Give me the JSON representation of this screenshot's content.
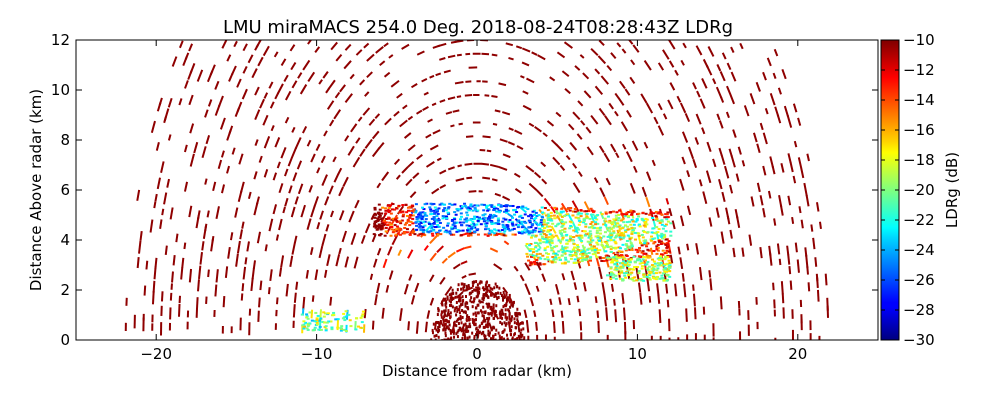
{
  "chart_data": {
    "type": "heatmap",
    "subtype": "RHI radar scan",
    "title": "LMU miraMACS 254.0 Deg. 2018-08-24T08:28:43Z  LDRg",
    "xlabel": "Distance from radar (km)",
    "ylabel": "Distance Above radar  (km)",
    "xlim": [
      -25,
      25
    ],
    "ylim": [
      0,
      12
    ],
    "xticks": [
      -20,
      -10,
      0,
      10,
      20
    ],
    "xtick_labels": [
      "−20",
      "−10",
      "0",
      "10",
      "20"
    ],
    "yticks": [
      0,
      2,
      4,
      6,
      8,
      10,
      12
    ],
    "ytick_labels": [
      "0",
      "2",
      "4",
      "6",
      "8",
      "10",
      "12"
    ],
    "colorbar": {
      "label": "LDRg (dB)",
      "colormap": "jet",
      "vmin": -30,
      "vmax": -10,
      "ticks": [
        -10,
        -12,
        -14,
        -16,
        -18,
        -20,
        -22,
        -24,
        -26,
        -28,
        -30
      ],
      "tick_labels": [
        "−10",
        "−12",
        "−14",
        "−16",
        "−18",
        "−20",
        "−22",
        "−24",
        "−26",
        "−28",
        "−30"
      ]
    },
    "features": [
      {
        "name": "near-radar clutter",
        "x_range": [
          -3,
          3
        ],
        "z_range": [
          0,
          2.5
        ],
        "ldr_db": -10.5
      },
      {
        "name": "cloud layer (low LDR core)",
        "x_range": [
          -4,
          4
        ],
        "z_range": [
          4.3,
          5.5
        ],
        "ldr_db": -25
      },
      {
        "name": "cloud layer (mid LDR)",
        "x_range": [
          3,
          12
        ],
        "z_range": [
          3,
          5.3
        ],
        "ldr_db": -19
      },
      {
        "name": "cloud layer (high LDR edge)",
        "x_range": [
          -6,
          12
        ],
        "z_range": [
          3,
          5.5
        ],
        "ldr_db": -13
      },
      {
        "name": "low-level returns",
        "x_range": [
          -11,
          -7
        ],
        "z_range": [
          0.4,
          1.2
        ],
        "ldr_db": -20
      },
      {
        "name": "sparse noise field",
        "x_range": [
          -22,
          22
        ],
        "z_range": [
          0,
          12
        ],
        "ldr_db": -10
      }
    ]
  }
}
